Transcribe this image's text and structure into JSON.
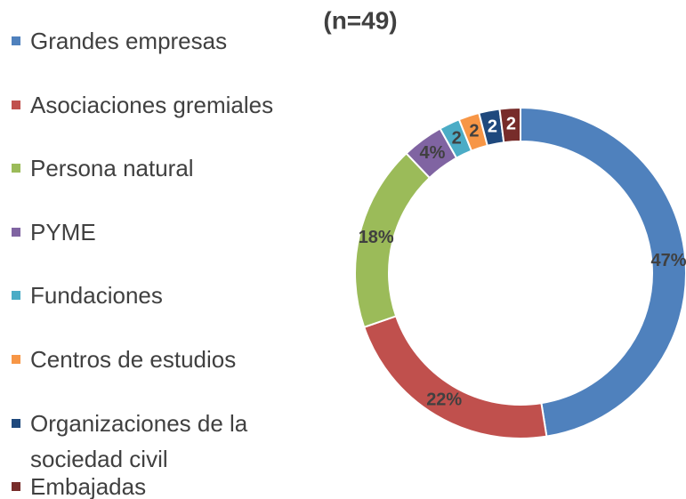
{
  "chart_data": {
    "type": "donut",
    "title": "(n=49)",
    "categories": [
      "Grandes empresas",
      "Asociaciones gremiales",
      "Persona natural",
      "PYME",
      "Fundaciones",
      "Centros de estudios",
      "Organizaciones de la sociedad civil",
      "Embajadas"
    ],
    "values": [
      47,
      22,
      18,
      4,
      2,
      2,
      2,
      2
    ],
    "value_labels": [
      "47%",
      "22%",
      "18%",
      "4%",
      "2",
      "2",
      "2",
      "2"
    ],
    "colors": [
      "#4f81bd",
      "#c0504d",
      "#9bbb59",
      "#8064a2",
      "#4bacc6",
      "#f79646",
      "#1f497d",
      "#772c2a"
    ],
    "legend": "left"
  }
}
